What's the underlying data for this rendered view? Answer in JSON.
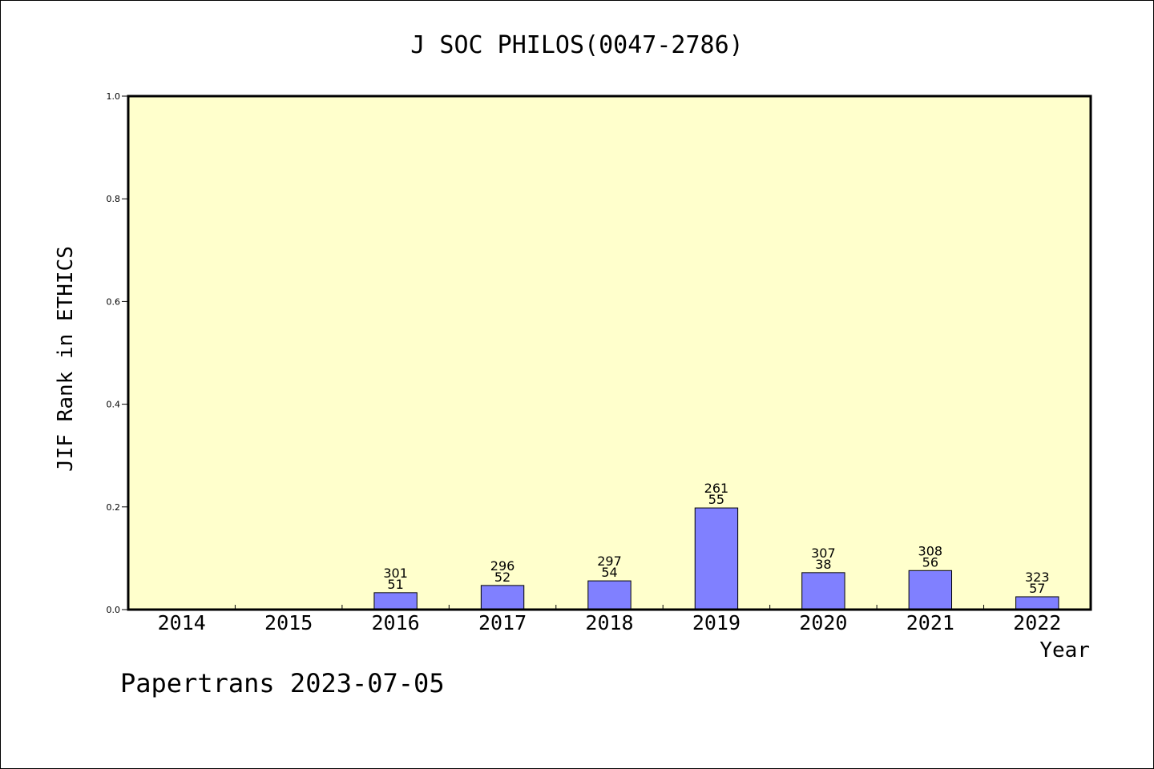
{
  "chart_data": {
    "type": "bar",
    "title": "J SOC PHILOS(0047-2786)",
    "xlabel": "Year",
    "ylabel": "JIF Rank in ETHICS",
    "ylim": [
      0,
      1.0
    ],
    "yticks": [
      "0.0",
      "0.2",
      "0.4",
      "0.6",
      "0.8",
      "1.0"
    ],
    "ytick_values": [
      0,
      0.2,
      0.4,
      0.6,
      0.8,
      1.0
    ],
    "categories": [
      "2014",
      "2015",
      "2016",
      "2017",
      "2018",
      "2019",
      "2020",
      "2021",
      "2022"
    ],
    "values": [
      null,
      null,
      0.033,
      0.047,
      0.056,
      0.198,
      0.072,
      0.076,
      0.025
    ],
    "bar_labels": [
      null,
      null,
      {
        "total": "301",
        "rank": "51"
      },
      {
        "total": "296",
        "rank": "52"
      },
      {
        "total": "297",
        "rank": "54"
      },
      {
        "total": "261",
        "rank": "55"
      },
      {
        "total": "307",
        "rank": "38"
      },
      {
        "total": "308",
        "rank": "56"
      },
      {
        "total": "323",
        "rank": "57"
      }
    ],
    "grid": false,
    "legend": "none",
    "colors": {
      "plot_background": "#ffffcc",
      "bar_fill": "#8080ff",
      "bar_stroke": "#000000"
    }
  },
  "footer": {
    "credit": "Papertrans 2023-07-05"
  }
}
